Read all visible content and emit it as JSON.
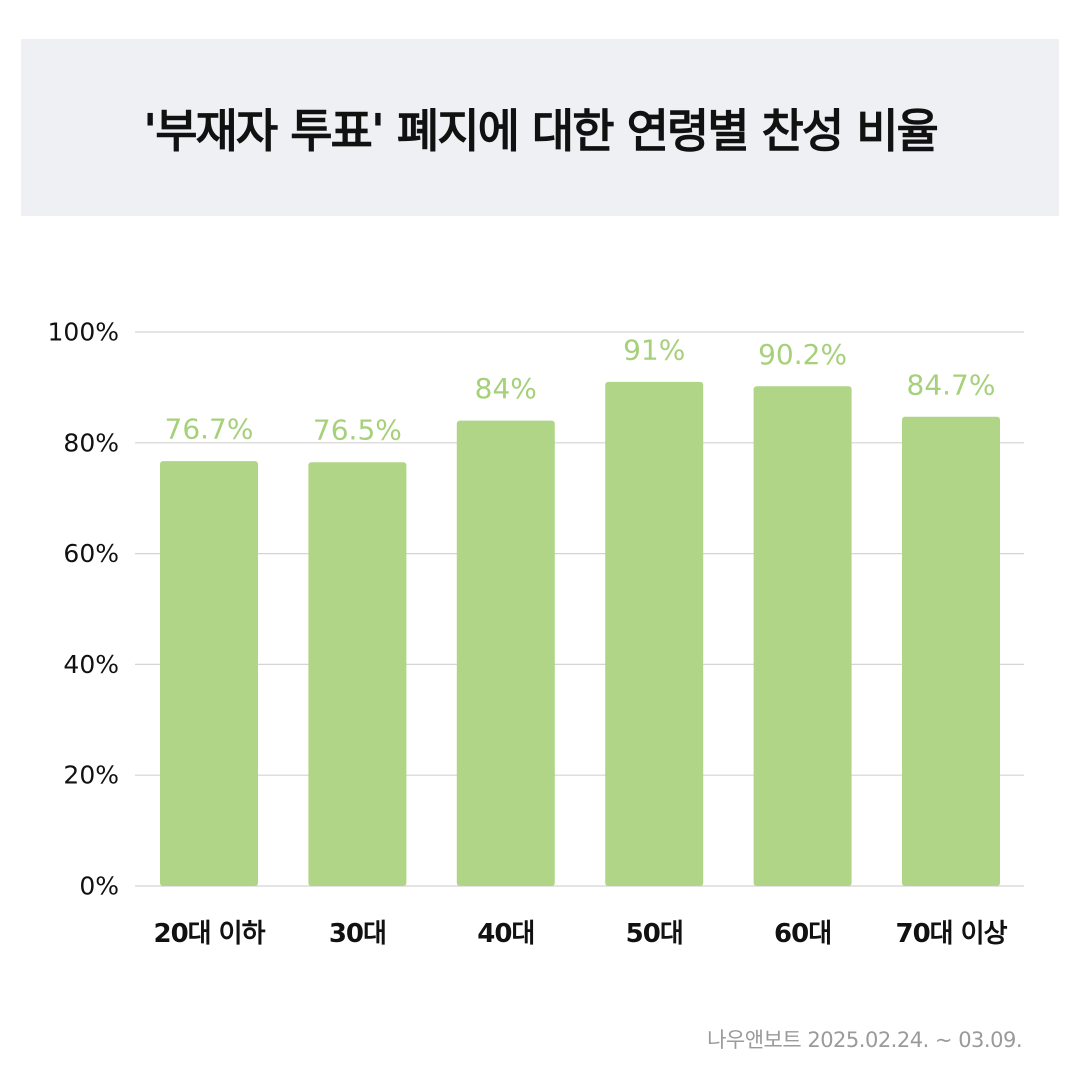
{
  "title": "'부재자 투표' 폐지에 대한 연령별 찬성 비율",
  "source": "나우앤보트 2025.02.24. ~ 03.09.",
  "colors": {
    "bar": "#b0d586",
    "value_label": "#a6d17a",
    "grid": "#d4d4d4",
    "axis_text": "#111111",
    "title_bg": "#eef0f3"
  },
  "chart_data": {
    "type": "bar",
    "categories": [
      "20대 이하",
      "30대",
      "40대",
      "50대",
      "60대",
      "70대 이상"
    ],
    "values": [
      76.7,
      76.5,
      84,
      91,
      90.2,
      84.7
    ],
    "value_labels": [
      "76.7%",
      "76.5%",
      "84%",
      "91%",
      "90.2%",
      "84.7%"
    ],
    "y_ticks": [
      0,
      20,
      40,
      60,
      80,
      100
    ],
    "y_tick_labels": [
      "0%",
      "20%",
      "40%",
      "60%",
      "80%",
      "100%"
    ],
    "ylim": [
      0,
      100
    ],
    "grid": true,
    "legend": "none"
  }
}
